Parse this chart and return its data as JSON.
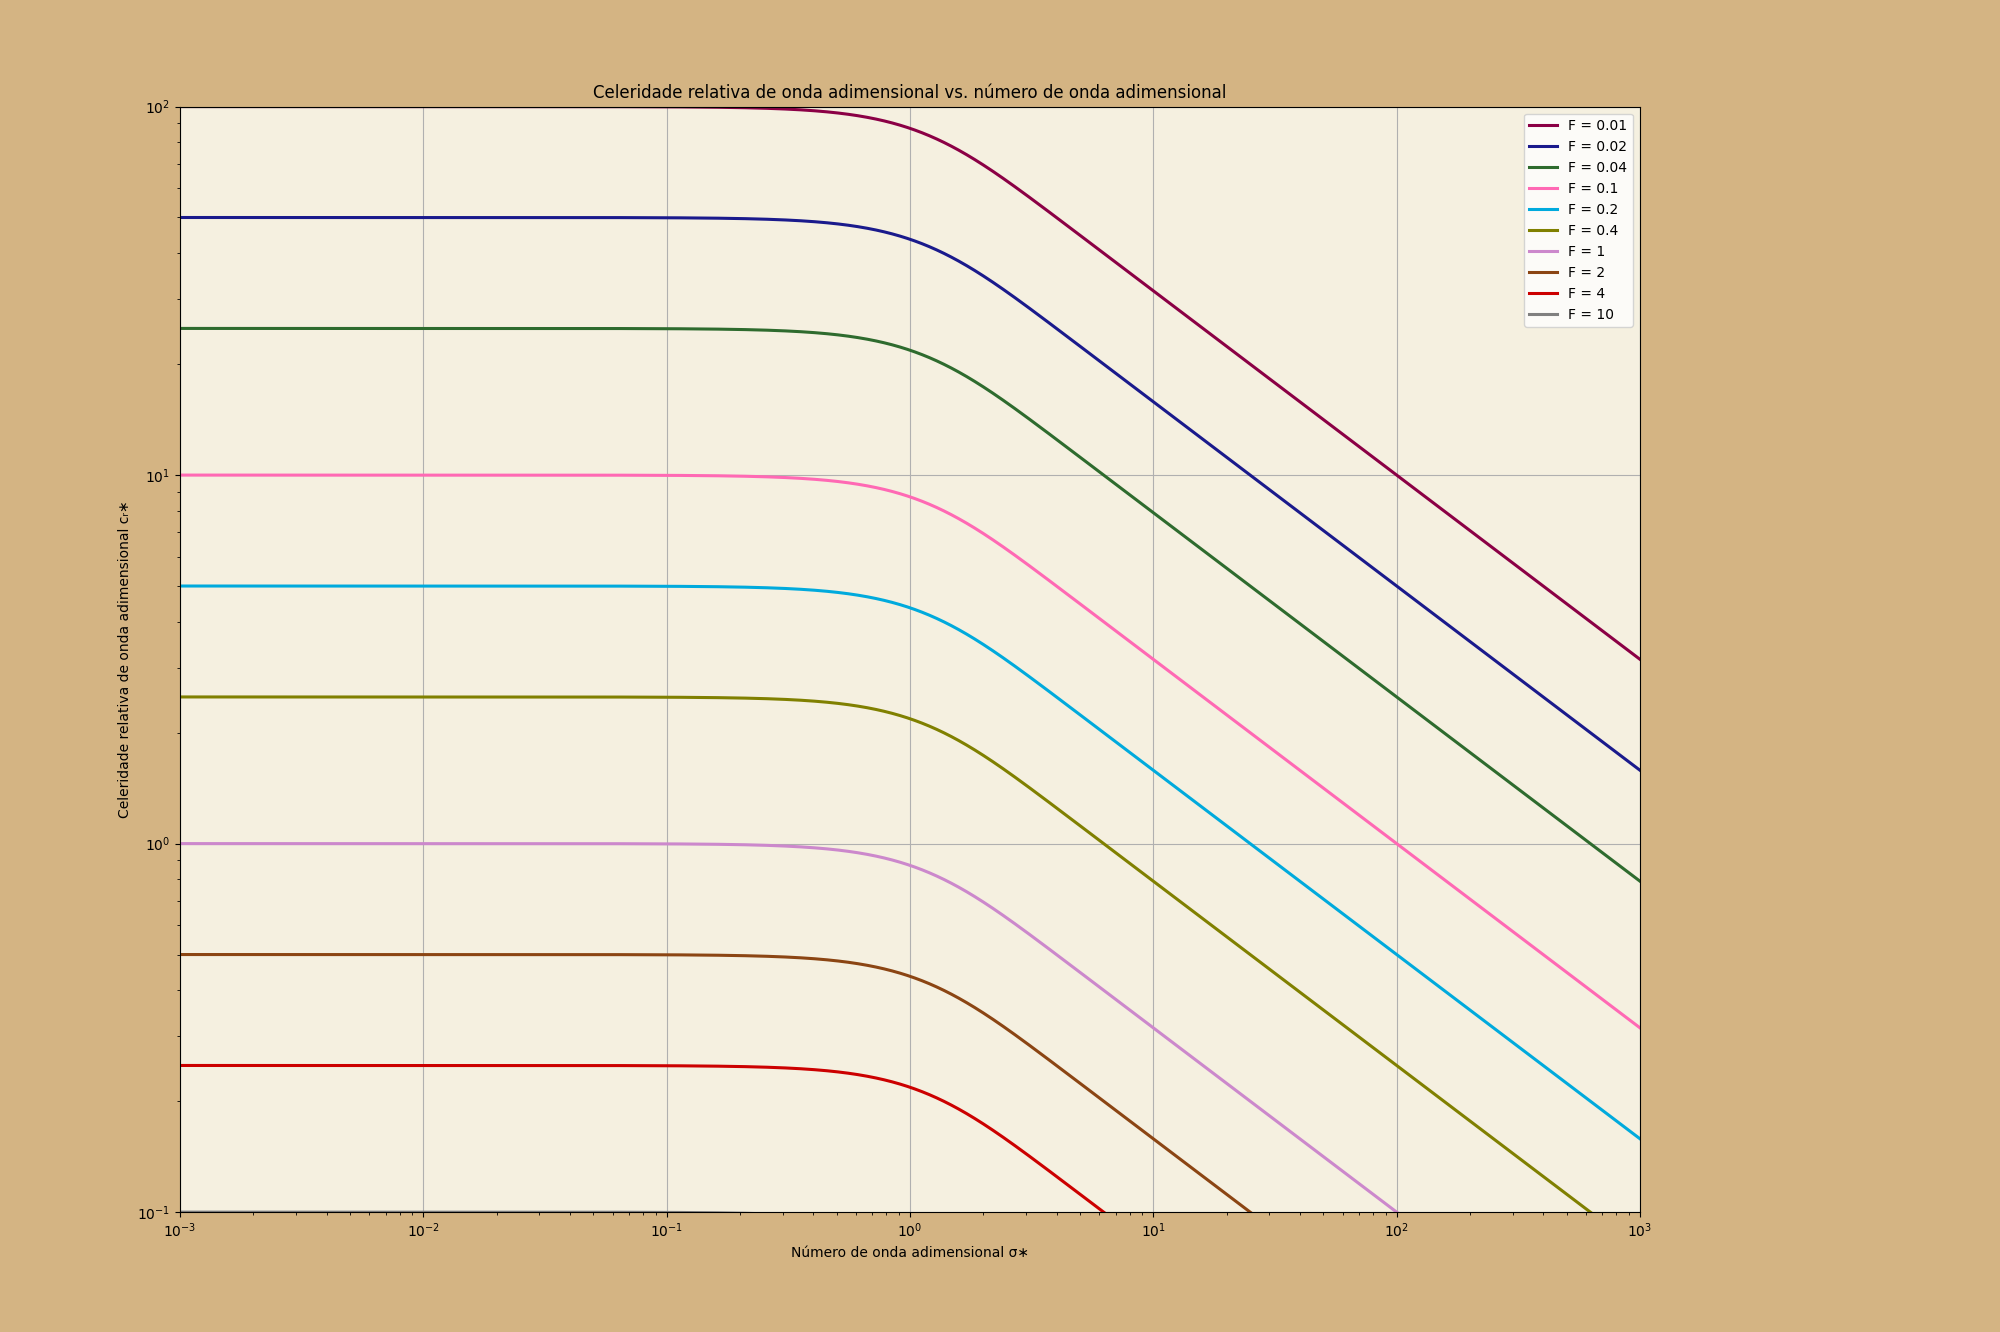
{
  "title": "Celeridade relativa de onda adimensional vs. número de onda adimensional",
  "xlabel": "Número de onda adimensional σ∗",
  "ylabel": "Celeridade relativa de onda adimensional cᵣ∗",
  "F_values": [
    0.01,
    0.02,
    0.04,
    0.1,
    0.2,
    0.4,
    1,
    2,
    4,
    10
  ],
  "colors": [
    "#8B0045",
    "#1a1a8c",
    "#2e6b2e",
    "#ff69b4",
    "#00aadd",
    "#808000",
    "#cc88cc",
    "#8B4513",
    "#cc0000",
    "#808080"
  ],
  "sigma_min": 0.001,
  "sigma_max": 1000,
  "cr_min": 0.1,
  "cr_max": 100,
  "background_color": "#d4b483",
  "plot_bg_color": "#f5f0e0",
  "grid_color": "#aaaaaa",
  "legend_bg": "#f0e8d8",
  "linewidth": 2.2
}
